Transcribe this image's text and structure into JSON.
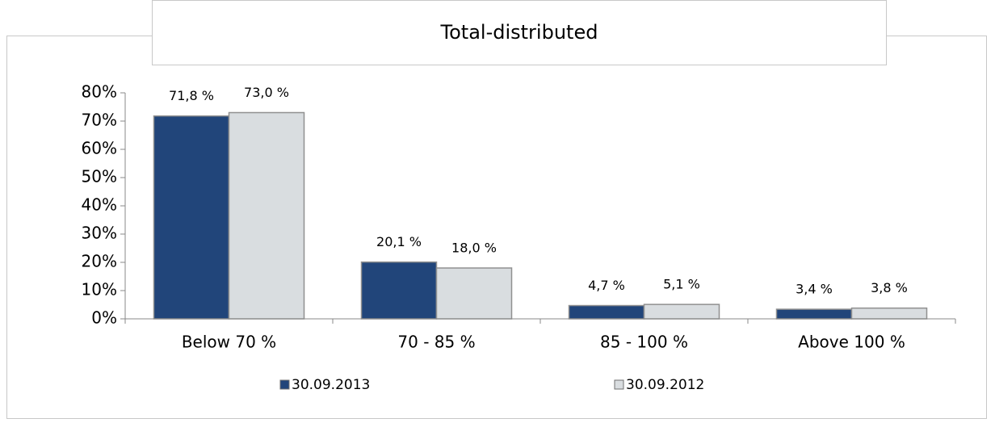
{
  "chart_data": {
    "type": "bar",
    "title": "Total-distributed",
    "categories": [
      "Below 70 %",
      "70 - 85 %",
      "85 - 100 %",
      "Above 100 %"
    ],
    "series": [
      {
        "name": "30.09.2013",
        "color": "#21457a",
        "values": [
          71.8,
          20.1,
          4.7,
          3.4
        ],
        "value_labels": [
          "71,8 %",
          "20,1 %",
          "4,7 %",
          "3,4 %"
        ]
      },
      {
        "name": "30.09.2012",
        "color": "#d9dde0",
        "values": [
          73.0,
          18.0,
          5.1,
          3.8
        ],
        "value_labels": [
          "73,0 %",
          "18,0 %",
          "5,1 %",
          "3,8 %"
        ]
      }
    ],
    "ylim": [
      0,
      80
    ],
    "yticks": [
      {
        "value": 0,
        "label": "0%"
      },
      {
        "value": 10,
        "label": "10%"
      },
      {
        "value": 20,
        "label": "20%"
      },
      {
        "value": 30,
        "label": "30%"
      },
      {
        "value": 40,
        "label": "40%"
      },
      {
        "value": 50,
        "label": "50%"
      },
      {
        "value": 60,
        "label": "60%"
      },
      {
        "value": 70,
        "label": "70%"
      },
      {
        "value": 80,
        "label": "80%"
      }
    ],
    "grid": false
  }
}
